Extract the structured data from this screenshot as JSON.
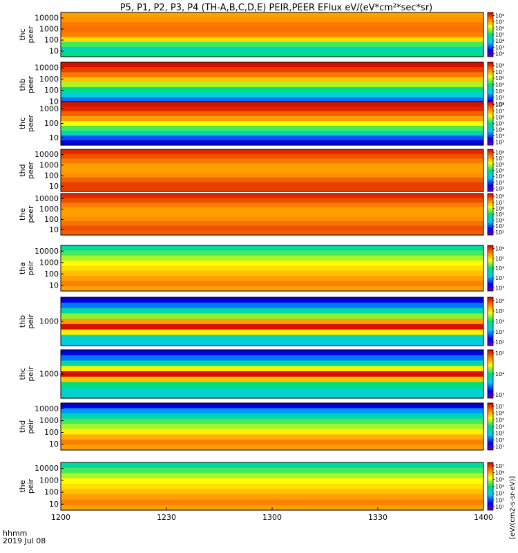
{
  "title": "P5, P1, P2, P3, P4 (TH-A,B,C,D,E) PEIR,PEER EFlux eV/(eV*cm²*sec*sr)",
  "footer": {
    "time_label": "hhmm",
    "date_label": "2019 Jul 08"
  },
  "colorbar_unit_label": "[eV/(cm2-s-sr-eV)]",
  "colors": {
    "low": "#00008b",
    "mid": "#00e07a",
    "high": "#ffff00",
    "max": "#ff0000"
  },
  "chart_data": {
    "type": "heatmap",
    "xlabel": "hhmm",
    "x_ticks": [
      "1200",
      "1230",
      "1300",
      "1330",
      "1400"
    ],
    "xlim": [
      "12:00",
      "14:00"
    ],
    "panels": [
      {
        "label": [
          "thc",
          "peer"
        ],
        "y_ticks": [
          "10",
          "100",
          "1000",
          "10000"
        ],
        "cbar_ticks": [
          "10²",
          "10³",
          "10⁴",
          "10⁵",
          "10⁶",
          "10⁷",
          "10⁸"
        ],
        "profile": [
          0.8,
          0.82,
          0.85,
          0.86,
          0.84,
          0.72,
          0.55,
          0.42,
          0.48
        ],
        "y_scale": "log"
      },
      {
        "label": [
          "thb",
          "peer"
        ],
        "y_ticks": [
          "10",
          "100",
          "1000",
          "10000"
        ],
        "cbar_ticks": [
          "10²",
          "10³",
          "10⁴",
          "10⁵",
          "10⁶",
          "10⁷",
          "10⁸"
        ],
        "profile": [
          0.98,
          0.92,
          0.85,
          0.75,
          0.62,
          0.5,
          0.38,
          0.25,
          0.12
        ],
        "y_scale": "log"
      },
      {
        "label": [
          "thc",
          "peer"
        ],
        "y_ticks": [
          "10",
          "100",
          "1000"
        ],
        "cbar_ticks": [
          "10²",
          "10³",
          "10⁴",
          "10⁵",
          "10⁶",
          "10⁷",
          "10⁸"
        ],
        "profile": [
          0.98,
          0.95,
          0.88,
          0.8,
          0.68,
          0.55,
          0.42,
          0.22,
          0.1
        ],
        "y_scale": "log"
      },
      {
        "label": [
          "thd",
          "peer"
        ],
        "y_ticks": [
          "10",
          "100",
          "1000",
          "10000"
        ],
        "cbar_ticks": [
          "10²",
          "10³",
          "10⁴",
          "10⁵",
          "10⁶",
          "10⁷",
          "10⁸"
        ],
        "profile": [
          0.95,
          0.9,
          0.85,
          0.8,
          0.8,
          0.82,
          0.88,
          0.92,
          0.92
        ],
        "y_scale": "log"
      },
      {
        "label": [
          "the",
          "peer"
        ],
        "y_ticks": [
          "10",
          "100",
          "1000",
          "10000"
        ],
        "cbar_ticks": [
          "10²",
          "10³",
          "10⁴",
          "10⁵",
          "10⁶",
          "10⁷",
          "10⁸"
        ],
        "profile": [
          0.95,
          0.9,
          0.84,
          0.8,
          0.8,
          0.82,
          0.86,
          0.9,
          0.88
        ],
        "y_scale": "log"
      },
      {
        "label": [
          "tha",
          "peir"
        ],
        "y_ticks": [
          "10",
          "100",
          "1000",
          "10000"
        ],
        "cbar_ticks": [
          "10²",
          "10³",
          "10⁴",
          "10⁵",
          "10⁶"
        ],
        "profile": [
          0.45,
          0.55,
          0.62,
          0.68,
          0.72,
          0.76,
          0.8,
          0.84,
          0.8
        ],
        "y_scale": "log"
      },
      {
        "label": [
          "thb",
          "peir"
        ],
        "y_ticks": [
          "1000"
        ],
        "cbar_ticks": [
          "10²",
          "10³",
          "10⁴",
          "10⁵",
          "10⁶"
        ],
        "profile": [
          0.1,
          0.25,
          0.45,
          0.6,
          0.8,
          0.98,
          0.7,
          0.4,
          0.35
        ],
        "y_scale": "log"
      },
      {
        "label": [
          "thc",
          "peir"
        ],
        "y_ticks": [
          "1000"
        ],
        "cbar_ticks": [
          "10³",
          "10⁴",
          "10⁵"
        ],
        "profile": [
          0.1,
          0.25,
          0.45,
          0.7,
          0.98,
          0.75,
          0.5,
          0.4,
          0.38
        ],
        "y_scale": "log"
      },
      {
        "label": [
          "thd",
          "peir"
        ],
        "y_ticks": [
          "10",
          "100",
          "1000",
          "10000"
        ],
        "cbar_ticks": [
          "10¹",
          "10²",
          "10³",
          "10⁴",
          "10⁵",
          "10⁶",
          "10⁷"
        ],
        "profile": [
          0.1,
          0.28,
          0.42,
          0.55,
          0.62,
          0.7,
          0.78,
          0.84,
          0.8
        ],
        "y_scale": "log"
      },
      {
        "label": [
          "the",
          "peir"
        ],
        "y_ticks": [
          "10",
          "100",
          "1000",
          "10000"
        ],
        "cbar_ticks": [
          "10¹",
          "10²",
          "10³",
          "10⁴",
          "10⁵",
          "10⁶",
          "10⁷"
        ],
        "profile": [
          0.45,
          0.55,
          0.62,
          0.68,
          0.72,
          0.76,
          0.8,
          0.84,
          0.8
        ],
        "y_scale": "log"
      }
    ]
  }
}
